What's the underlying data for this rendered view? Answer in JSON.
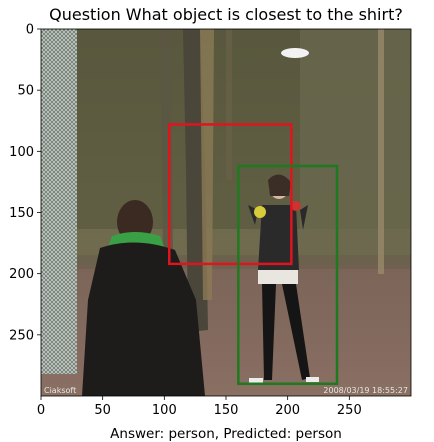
{
  "title": "Question What object is closest to the shirt?",
  "xlabel": "Answer: person, Predicted: person",
  "watermark_left": "Ciaksoft",
  "watermark_right": "2008/03/19 18:55:27",
  "colors": {
    "question_box": "#e0141e",
    "answer_box": "#1f7a1f"
  },
  "chart_data": {
    "type": "image",
    "title": "Question What object is closest to the shirt?",
    "xlabel": "Answer: person, Predicted: person",
    "xlim": [
      0,
      300
    ],
    "ylim": [
      300,
      0
    ],
    "x_ticks": [
      0,
      50,
      100,
      150,
      200,
      250
    ],
    "y_ticks": [
      0,
      50,
      100,
      150,
      200,
      250
    ],
    "boxes": [
      {
        "role": "question",
        "color": "#e0141e",
        "x0": 104,
        "y0": 78,
        "x1": 203,
        "y1": 192
      },
      {
        "role": "answer",
        "color": "#1f7a1f",
        "x0": 160,
        "y0": 112,
        "x1": 240,
        "y1": 290
      }
    ]
  }
}
